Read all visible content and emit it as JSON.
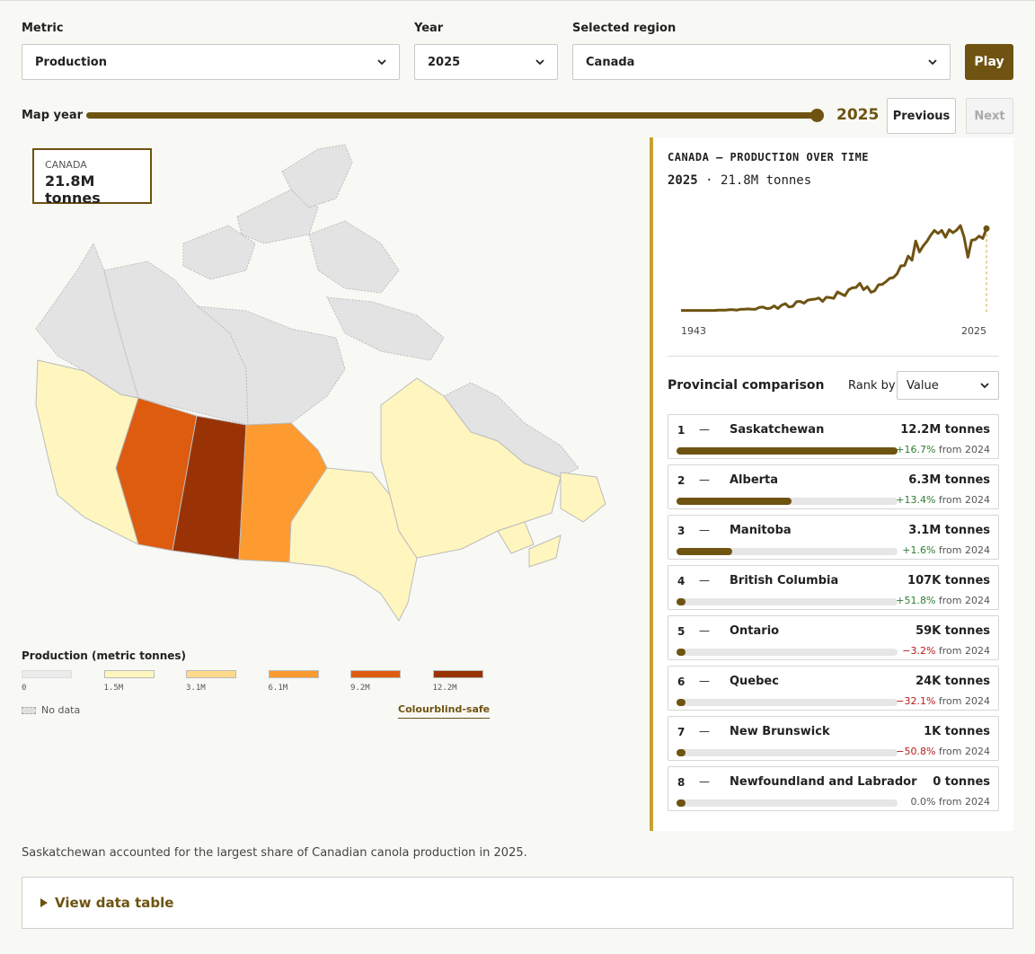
{
  "controls": {
    "metric_label": "Metric",
    "metric_value": "Production",
    "year_label": "Year",
    "year_value": "2025",
    "region_label": "Selected region",
    "region_value": "Canada",
    "play_label": "Play",
    "map_year_label": "Map year",
    "map_year_value": "2025",
    "map_year_progress": 1.0,
    "previous_label": "Previous",
    "next_label": "Next"
  },
  "map": {
    "tooltip_region": "CANADA",
    "tooltip_value": "21.8M tonnes",
    "legend_title": "Production (metric tonnes)",
    "legend": [
      {
        "label": "0",
        "color": "#ebebeb"
      },
      {
        "label": "1.5M",
        "color": "#fff6bf"
      },
      {
        "label": "3.1M",
        "color": "#fdd98a"
      },
      {
        "label": "6.1M",
        "color": "#fd9b30"
      },
      {
        "label": "9.2M",
        "color": "#dd5c10"
      },
      {
        "label": "12.2M",
        "color": "#993306"
      }
    ],
    "no_data_label": "No data",
    "colourblind_label": "Colourblind-safe",
    "province_colors": {
      "no_data": "#e3e3e3",
      "lightest": "#fff6bf",
      "ab": "#dd5c10",
      "sk": "#993306",
      "mb": "#fd9b30"
    }
  },
  "panel": {
    "title": "CANADA — PRODUCTION OVER TIME",
    "sub_year": "2025",
    "sub_value": "· 21.8M tonnes",
    "start_year": "1943",
    "end_year": "2025",
    "comparison_title": "Provincial comparison",
    "rank_by_label": "Rank by",
    "rank_by_value": "Value",
    "line_color": "#6e5311"
  },
  "chart_data": {
    "type": "line",
    "title": "CANADA — PRODUCTION OVER TIME",
    "x_range": [
      1943,
      2025
    ],
    "values": [
      0.1,
      0.1,
      0.1,
      0.1,
      0.1,
      0.1,
      0.1,
      0.1,
      0.1,
      0.1,
      0.2,
      0.2,
      0.2,
      0.3,
      0.3,
      0.2,
      0.4,
      0.4,
      0.5,
      0.4,
      0.4,
      0.9,
      1.0,
      0.6,
      0.7,
      1.3,
      0.6,
      1.5,
      1.9,
      1.0,
      1.2,
      2.4,
      2.5,
      2.0,
      2.8,
      3.0,
      3.1,
      3.4,
      2.5,
      3.6,
      3.5,
      3.3,
      5.0,
      4.5,
      4.0,
      5.6,
      6.1,
      6.2,
      7.3,
      5.6,
      6.4,
      4.9,
      5.3,
      6.9,
      7.0,
      7.7,
      8.6,
      8.8,
      9.8,
      11.9,
      12.0,
      14.5,
      13.4,
      18.5,
      15.6,
      17.2,
      18.4,
      20.0,
      21.3,
      20.5,
      21.3,
      19.5,
      21.5,
      20.7,
      21.4,
      22.6,
      19.5,
      14.2,
      18.7,
      18.9,
      19.8,
      19.2,
      21.8
    ],
    "ylim": [
      0,
      25
    ]
  },
  "provinces": [
    {
      "rank": "1",
      "dash": "—",
      "name": "Saskatchewan",
      "value": "12.2M tonnes",
      "share": 1.0,
      "change": "+16.7%",
      "from": "from 2024",
      "dir": "pos"
    },
    {
      "rank": "2",
      "dash": "—",
      "name": "Alberta",
      "value": "6.3M tonnes",
      "share": 0.52,
      "change": "+13.4%",
      "from": "from 2024",
      "dir": "pos"
    },
    {
      "rank": "3",
      "dash": "—",
      "name": "Manitoba",
      "value": "3.1M tonnes",
      "share": 0.25,
      "change": "+1.6%",
      "from": "from 2024",
      "dir": "pos"
    },
    {
      "rank": "4",
      "dash": "—",
      "name": "British Columbia",
      "value": "107K tonnes",
      "share": 0.009,
      "change": "+51.8%",
      "from": "from 2024",
      "dir": "pos"
    },
    {
      "rank": "5",
      "dash": "—",
      "name": "Ontario",
      "value": "59K tonnes",
      "share": 0.005,
      "change": "−3.2%",
      "from": "from 2024",
      "dir": "neg"
    },
    {
      "rank": "6",
      "dash": "—",
      "name": "Quebec",
      "value": "24K tonnes",
      "share": 0.002,
      "change": "−32.1%",
      "from": "from 2024",
      "dir": "neg"
    },
    {
      "rank": "7",
      "dash": "—",
      "name": "New Brunswick",
      "value": "1K tonnes",
      "share": 0.0001,
      "change": "−50.8%",
      "from": "from 2024",
      "dir": "neg"
    },
    {
      "rank": "8",
      "dash": "—",
      "name": "Newfoundland and Labrador",
      "value": "0 tonnes",
      "share": 0.0,
      "change": "0.0%",
      "from": "from 2024",
      "dir": "zero"
    }
  ],
  "footer": {
    "note": "Saskatchewan accounted for the largest share of Canadian canola production in 2025.",
    "data_table_label": "View data table"
  }
}
